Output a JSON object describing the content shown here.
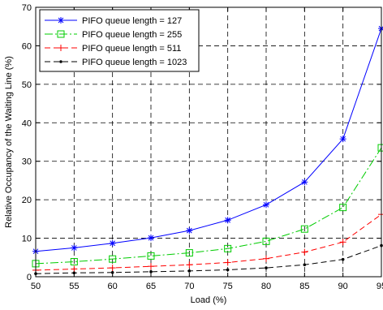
{
  "chart_data": {
    "type": "line",
    "xlabel": "Load (%)",
    "ylabel": "Relative Occupancy of the Waiting Line (%)",
    "xlim": [
      50,
      95
    ],
    "ylim": [
      0,
      70
    ],
    "x_ticks": [
      "50",
      "55",
      "60",
      "65",
      "70",
      "75",
      "80",
      "85",
      "90",
      "95"
    ],
    "y_ticks": [
      "0",
      "10",
      "20",
      "30",
      "40",
      "50",
      "60",
      "70"
    ],
    "grid": true,
    "legend_position": "top-left",
    "x": [
      50,
      55,
      60,
      65,
      70,
      75,
      80,
      85,
      90,
      95
    ],
    "series": [
      {
        "name": "PIFO queue length = 127",
        "color": "#0000ff",
        "line_style": "solid",
        "marker": "asterisk",
        "values": [
          6.6,
          7.5,
          8.7,
          10.1,
          12.0,
          14.7,
          18.7,
          24.6,
          35.8,
          64.5
        ]
      },
      {
        "name": "PIFO queue length = 255",
        "color": "#00cc00",
        "line_style": "dashdot",
        "marker": "square",
        "values": [
          3.4,
          3.9,
          4.6,
          5.4,
          6.2,
          7.3,
          9.2,
          12.4,
          18.0,
          33.5
        ]
      },
      {
        "name": "PIFO queue length = 511",
        "color": "#ff0000",
        "line_style": "dashed",
        "marker": "plus",
        "values": [
          1.7,
          2.0,
          2.3,
          2.7,
          3.1,
          3.7,
          4.7,
          6.4,
          9.0,
          16.2
        ]
      },
      {
        "name": "PIFO queue length = 1023",
        "color": "#000000",
        "line_style": "dashed",
        "marker": "dot",
        "values": [
          0.8,
          1.0,
          1.1,
          1.3,
          1.5,
          1.8,
          2.3,
          3.1,
          4.5,
          8.1
        ]
      }
    ]
  }
}
